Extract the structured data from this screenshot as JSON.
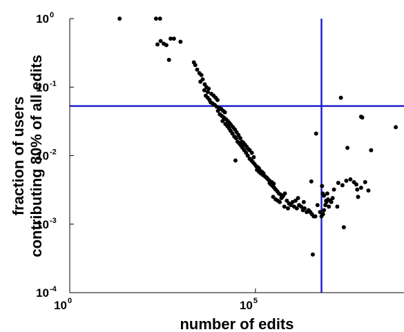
{
  "chart_data": {
    "type": "scatter",
    "title": "",
    "xlabel": "number of edits",
    "ylabel_lines": [
      "fraction of users",
      "contributing 80% of all edits"
    ],
    "x_scale": "log",
    "y_scale": "log",
    "xlim": [
      1,
      1000000000
    ],
    "ylim": [
      0.0001,
      1
    ],
    "x_ticks": [
      {
        "base": "10",
        "exp": "0",
        "value": 1
      },
      {
        "base": "10",
        "exp": "5",
        "value": 100000
      }
    ],
    "y_ticks": [
      {
        "base": "10",
        "exp": "0",
        "value": 1
      },
      {
        "base": "10",
        "exp": "-1",
        "value": 0.1
      },
      {
        "base": "10",
        "exp": "-2",
        "value": 0.01
      },
      {
        "base": "10",
        "exp": "-3",
        "value": 0.001
      },
      {
        "base": "10",
        "exp": "-4",
        "value": 0.0001
      }
    ],
    "reference_lines": {
      "x": 6000000,
      "y": 0.053,
      "color": "#1f1fcc"
    },
    "marker_color": "#000000",
    "points": [
      [
        22,
        1.0
      ],
      [
        210,
        1.0
      ],
      [
        270,
        1.0
      ],
      [
        230,
        0.42
      ],
      [
        280,
        0.47
      ],
      [
        340,
        0.43
      ],
      [
        400,
        0.41
      ],
      [
        470,
        0.25
      ],
      [
        520,
        0.51
      ],
      [
        640,
        0.51
      ],
      [
        960,
        0.46
      ],
      [
        2200,
        0.23
      ],
      [
        2400,
        0.21
      ],
      [
        2700,
        0.18
      ],
      [
        3100,
        0.16
      ],
      [
        3500,
        0.15
      ],
      [
        3300,
        0.12
      ],
      [
        3800,
        0.13
      ],
      [
        4300,
        0.11
      ],
      [
        4800,
        0.1
      ],
      [
        5500,
        0.095
      ],
      [
        5200,
        0.085
      ],
      [
        6500,
        0.08
      ],
      [
        7500,
        0.075
      ],
      [
        8500,
        0.07
      ],
      [
        9500,
        0.065
      ],
      [
        4200,
        0.09
      ],
      [
        4600,
        0.075
      ],
      [
        5200,
        0.07
      ],
      [
        5800,
        0.065
      ],
      [
        6200,
        0.06
      ],
      [
        7000,
        0.058
      ],
      [
        8000,
        0.055
      ],
      [
        9000,
        0.052
      ],
      [
        10500,
        0.05
      ],
      [
        12000,
        0.048
      ],
      [
        13500,
        0.045
      ],
      [
        15000,
        0.043
      ],
      [
        9800,
        0.045
      ],
      [
        11000,
        0.04
      ],
      [
        12500,
        0.038
      ],
      [
        14000,
        0.036
      ],
      [
        16000,
        0.034
      ],
      [
        18000,
        0.032
      ],
      [
        20000,
        0.03
      ],
      [
        22000,
        0.028
      ],
      [
        25000,
        0.026
      ],
      [
        28000,
        0.024
      ],
      [
        31000,
        0.022
      ],
      [
        35000,
        0.02
      ],
      [
        13000,
        0.032
      ],
      [
        15500,
        0.029
      ],
      [
        17500,
        0.027
      ],
      [
        19500,
        0.025
      ],
      [
        21500,
        0.023
      ],
      [
        24000,
        0.021
      ],
      [
        27000,
        0.019
      ],
      [
        30000,
        0.018
      ],
      [
        33000,
        0.016
      ],
      [
        37000,
        0.015
      ],
      [
        41000,
        0.014
      ],
      [
        45000,
        0.013
      ],
      [
        50000,
        0.012
      ],
      [
        56000,
        0.011
      ],
      [
        62000,
        0.01
      ],
      [
        70000,
        0.009
      ],
      [
        78000,
        0.0085
      ],
      [
        86000,
        0.008
      ],
      [
        95000,
        0.0075
      ],
      [
        39000,
        0.018
      ],
      [
        43000,
        0.016
      ],
      [
        47000,
        0.0155
      ],
      [
        52000,
        0.0145
      ],
      [
        58000,
        0.0135
      ],
      [
        64000,
        0.0125
      ],
      [
        29000,
        0.0085
      ],
      [
        70000,
        0.012
      ],
      [
        80000,
        0.011
      ],
      [
        90000,
        0.0095
      ],
      [
        105000,
        0.007
      ],
      [
        115000,
        0.0068
      ],
      [
        125000,
        0.0065
      ],
      [
        135000,
        0.006
      ],
      [
        150000,
        0.0058
      ],
      [
        165000,
        0.0055
      ],
      [
        180000,
        0.005
      ],
      [
        200000,
        0.0048
      ],
      [
        220000,
        0.0045
      ],
      [
        240000,
        0.004
      ],
      [
        260000,
        0.0038
      ],
      [
        290000,
        0.0036
      ],
      [
        320000,
        0.0034
      ],
      [
        350000,
        0.0032
      ],
      [
        390000,
        0.003
      ],
      [
        430000,
        0.0028
      ],
      [
        480000,
        0.0027
      ],
      [
        530000,
        0.0025
      ],
      [
        110000,
        0.0062
      ],
      [
        125000,
        0.0058
      ],
      [
        140000,
        0.0055
      ],
      [
        160000,
        0.0052
      ],
      [
        185000,
        0.0049
      ],
      [
        210000,
        0.0046
      ],
      [
        240000,
        0.0043
      ],
      [
        275000,
        0.0041
      ],
      [
        310000,
        0.0039
      ],
      [
        300000,
        0.0025
      ],
      [
        350000,
        0.0023
      ],
      [
        400000,
        0.0022
      ],
      [
        450000,
        0.0021
      ],
      [
        500000,
        0.0024
      ],
      [
        560000,
        0.0026
      ],
      [
        620000,
        0.0028
      ],
      [
        700000,
        0.0022
      ],
      [
        800000,
        0.002
      ],
      [
        900000,
        0.0019
      ],
      [
        1000000,
        0.0021
      ],
      [
        1100000,
        0.0018
      ],
      [
        1300000,
        0.0017
      ],
      [
        1500000,
        0.0019
      ],
      [
        1700000,
        0.0018
      ],
      [
        1900000,
        0.0016
      ],
      [
        2100000,
        0.0017
      ],
      [
        2400000,
        0.0015
      ],
      [
        2700000,
        0.0016
      ],
      [
        3000000,
        0.0015
      ],
      [
        3300000,
        0.0014
      ],
      [
        3700000,
        0.0013
      ],
      [
        4100000,
        0.0013
      ],
      [
        600000,
        0.0018
      ],
      [
        750000,
        0.0017
      ],
      [
        1200000,
        0.0022
      ],
      [
        1400000,
        0.0024
      ],
      [
        2000000,
        0.0021
      ],
      [
        3200000,
        0.0042
      ],
      [
        4700000,
        0.0019
      ],
      [
        5500000,
        0.0015
      ],
      [
        6000000,
        0.0013
      ],
      [
        6600000,
        0.0014
      ],
      [
        7000000,
        0.0016
      ],
      [
        7600000,
        0.0019
      ],
      [
        8200000,
        0.0021
      ],
      [
        9000000,
        0.0023
      ],
      [
        10500000,
        0.0022
      ],
      [
        12000000,
        0.0024
      ],
      [
        6500000,
        0.0028
      ],
      [
        7000000,
        0.0026
      ],
      [
        8000000,
        0.0022
      ],
      [
        9500000,
        0.0018
      ],
      [
        11000000,
        0.0021
      ],
      [
        8600000,
        0.0028
      ],
      [
        13000000,
        0.0032
      ],
      [
        17000000,
        0.004
      ],
      [
        22000000,
        0.0037
      ],
      [
        28000000,
        0.0043
      ],
      [
        36000000,
        0.0045
      ],
      [
        45000000,
        0.0041
      ],
      [
        52000000,
        0.0038
      ],
      [
        70000000,
        0.0034
      ],
      [
        90000000,
        0.0041
      ],
      [
        110000000,
        0.0031
      ],
      [
        6200000,
        0.0036
      ],
      [
        16000000,
        0.0018
      ],
      [
        24000000,
        0.0009
      ],
      [
        55000000,
        0.0032
      ],
      [
        58000000,
        0.0025
      ],
      [
        3500000,
        0.00036
      ],
      [
        4300000,
        0.021
      ],
      [
        20000000,
        0.07
      ],
      [
        30000000,
        0.013
      ],
      [
        70000000,
        0.037
      ],
      [
        75000000,
        0.036
      ],
      [
        130000000,
        0.012
      ],
      [
        600000000,
        0.026
      ]
    ]
  }
}
